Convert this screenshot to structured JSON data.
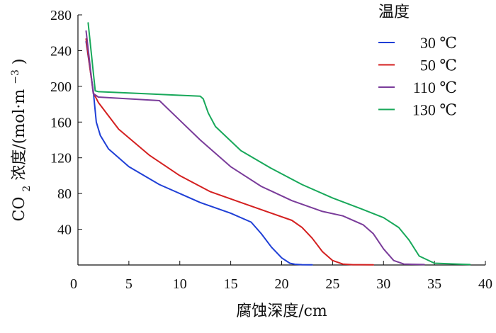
{
  "chart_data": {
    "type": "line",
    "title": "",
    "xlabel": "腐蚀深度/cm",
    "ylabel_parts": {
      "a": "CO",
      "b": "2",
      "c": "浓度/(mol·m",
      "d": "−3",
      "e": ")"
    },
    "ylabel": "CO2浓度/(mol·m−3)",
    "xlim": [
      0,
      40
    ],
    "ylim": [
      0,
      280
    ],
    "x_ticks": [
      0,
      5,
      10,
      15,
      20,
      25,
      30,
      35,
      40
    ],
    "y_ticks": [
      40,
      80,
      120,
      160,
      200,
      240,
      280
    ],
    "grid": false,
    "legend": {
      "title": "温度",
      "placement": "top-right"
    },
    "series": [
      {
        "name": "30 ℃",
        "color": "#1f3fd6",
        "x": [
          0.8,
          1.5,
          1.8,
          2.2,
          3,
          5,
          8,
          12,
          15,
          17,
          18,
          19,
          20,
          20.8,
          21.3,
          22,
          23
        ],
        "y": [
          250,
          195,
          160,
          145,
          130,
          110,
          90,
          70,
          58,
          48,
          35,
          20,
          8,
          2,
          0.8,
          0.3,
          0.2
        ]
      },
      {
        "name": "50 ℃",
        "color": "#d42020",
        "x": [
          0.8,
          1.5,
          2,
          4,
          7,
          10,
          13,
          16,
          19,
          21,
          22,
          23,
          24,
          25,
          26,
          27,
          29
        ],
        "y": [
          253,
          193,
          182,
          152,
          123,
          100,
          82,
          70,
          58,
          50,
          42,
          30,
          15,
          5,
          1,
          0.3,
          0.2
        ]
      },
      {
        "name": "110 ℃",
        "color": "#7a3c9a",
        "x": [
          0.8,
          1.5,
          2,
          5,
          8,
          10,
          12,
          15,
          18,
          21,
          24,
          26,
          28,
          29,
          30,
          31,
          32,
          34
        ],
        "y": [
          262,
          192,
          188,
          186,
          184,
          162,
          140,
          110,
          88,
          72,
          60,
          55,
          45,
          35,
          18,
          5,
          1,
          0.5
        ]
      },
      {
        "name": "130 ℃",
        "color": "#18a85a",
        "x": [
          1.0,
          1.7,
          2,
          6,
          10,
          12,
          12.3,
          12.8,
          13.5,
          16,
          19,
          22,
          25,
          28,
          30,
          31.5,
          32.5,
          33.5,
          35,
          38.5
        ],
        "y": [
          271,
          195,
          194,
          192,
          190,
          189,
          186,
          170,
          155,
          128,
          108,
          90,
          75,
          62,
          53,
          42,
          28,
          10,
          2,
          0.5
        ]
      }
    ]
  }
}
